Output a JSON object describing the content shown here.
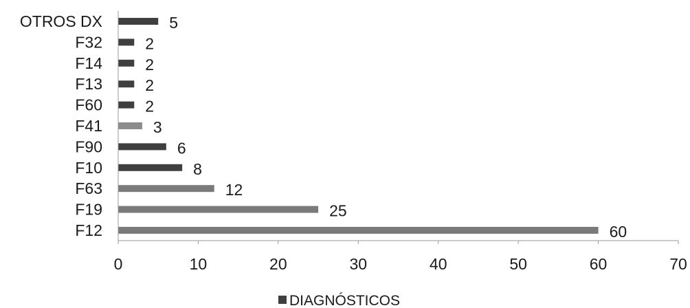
{
  "chart_data": {
    "type": "bar",
    "orientation": "horizontal",
    "categories": [
      "F12",
      "F19",
      "F63",
      "F10",
      "F90",
      "F41",
      "F60",
      "F13",
      "F14",
      "F32",
      "OTROS DX"
    ],
    "values": [
      60,
      25,
      12,
      8,
      6,
      3,
      2,
      2,
      2,
      2,
      5
    ],
    "series": [
      {
        "name": "DIAGNÓSTICOS",
        "values": [
          60,
          25,
          12,
          8,
          6,
          3,
          2,
          2,
          2,
          2,
          5
        ]
      }
    ],
    "bar_colors": [
      "#7a7a7a",
      "#7a7a7a",
      "#7a7a7a",
      "#3f3f3f",
      "#3f3f3f",
      "#8c8c8c",
      "#3f3f3f",
      "#3f3f3f",
      "#3f3f3f",
      "#3f3f3f",
      "#3f3f3f"
    ],
    "legend_color": "#3f3f3f",
    "xticks": [
      0,
      10,
      20,
      30,
      40,
      50,
      60,
      70
    ],
    "xlim": [
      0,
      70
    ],
    "title": "",
    "xlabel": "",
    "ylabel": "",
    "grid": false,
    "data_labels": true,
    "legend_position": "bottom"
  }
}
